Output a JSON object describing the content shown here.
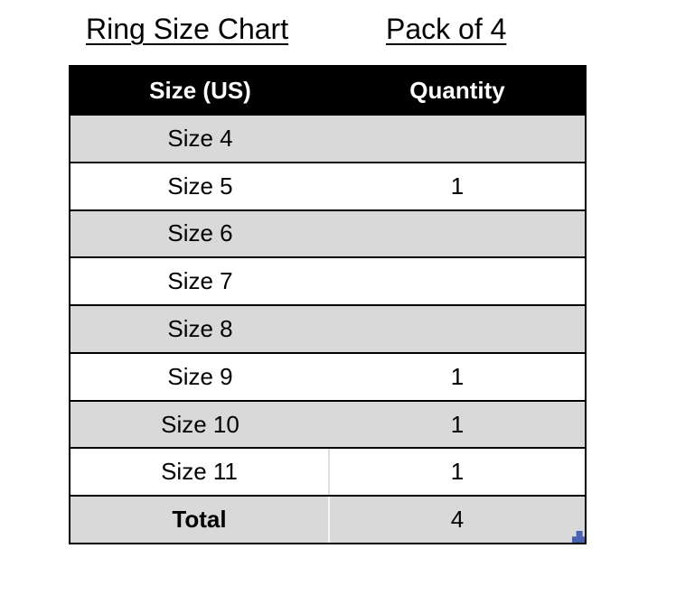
{
  "page": {
    "title_left": "Ring Size Chart",
    "title_right": "Pack of 4"
  },
  "table": {
    "headers": {
      "size": "Size (US)",
      "quantity": "Quantity"
    },
    "rows": [
      {
        "size": "Size 4",
        "quantity": ""
      },
      {
        "size": "Size 5",
        "quantity": "1"
      },
      {
        "size": "Size 6",
        "quantity": ""
      },
      {
        "size": "Size 7",
        "quantity": ""
      },
      {
        "size": "Size 8",
        "quantity": ""
      },
      {
        "size": "Size 9",
        "quantity": "1"
      },
      {
        "size": "Size 10",
        "quantity": "1"
      },
      {
        "size": "Size 11",
        "quantity": "1"
      },
      {
        "size": "Total",
        "quantity": "4"
      }
    ],
    "colors": {
      "header_bg": "#000000",
      "header_text": "#ffffff",
      "row_alt_bg": "#d9d9d9",
      "border": "#000000",
      "selection_handle": "#4a62b3"
    }
  },
  "chart_data": {
    "type": "table",
    "title": "Ring Size Chart",
    "subtitle": "Pack of 4",
    "columns": [
      "Size (US)",
      "Quantity"
    ],
    "rows": [
      [
        "Size 4",
        null
      ],
      [
        "Size 5",
        1
      ],
      [
        "Size 6",
        null
      ],
      [
        "Size 7",
        null
      ],
      [
        "Size 8",
        null
      ],
      [
        "Size 9",
        1
      ],
      [
        "Size 10",
        1
      ],
      [
        "Size 11",
        1
      ],
      [
        "Total",
        4
      ]
    ]
  }
}
